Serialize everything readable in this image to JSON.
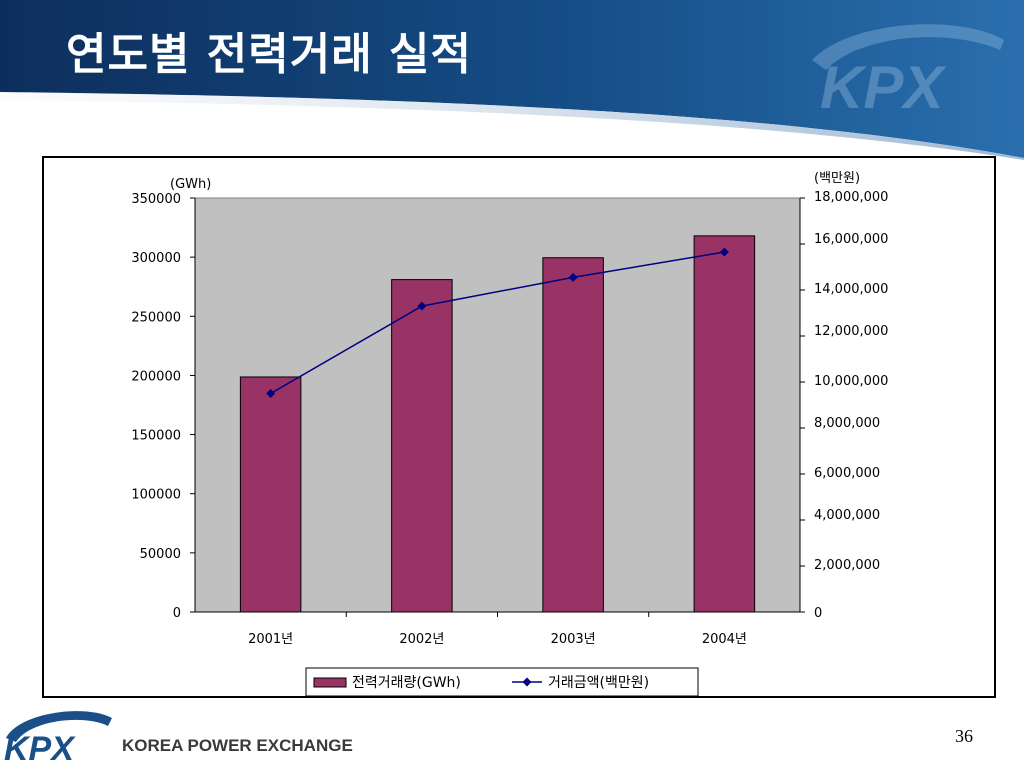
{
  "slide": {
    "title": "연도별 전력거래 실적",
    "page_number": "36",
    "footer_text": "KOREA POWER EXCHANGE",
    "brand_logo": "KPX",
    "colors": {
      "header_dark": "#0d2e5c",
      "header_light": "#cfdbe8",
      "bar_fill": "#993366",
      "line_color": "#000080",
      "plot_background": "#c0c0c0"
    }
  },
  "chart_data": {
    "type": "bar",
    "categories": [
      "2001년",
      "2002년",
      "2003년",
      "2004년"
    ],
    "series": [
      {
        "name": "전력거래량(GWh)",
        "type": "bar",
        "axis": "left",
        "values": [
          198700,
          281000,
          299500,
          318000
        ]
      },
      {
        "name": "거래금액(백만원)",
        "type": "line",
        "axis": "right",
        "values": [
          9500000,
          13300000,
          14550000,
          15650000
        ]
      }
    ],
    "y_left": {
      "label": "(GWh)",
      "range": [
        0,
        350000
      ],
      "ticks": [
        "0",
        "50000",
        "100000",
        "150000",
        "200000",
        "250000",
        "300000",
        "350000"
      ]
    },
    "y_right": {
      "label": "(백만원)",
      "range": [
        0,
        18000000
      ],
      "ticks": [
        "0",
        "2,000,000",
        "4,000,000",
        "6,000,000",
        "8,000,000",
        "10,000,000",
        "12,000,000",
        "14,000,000",
        "16,000,000",
        "18,000,000"
      ]
    },
    "grid": false,
    "legend_position": "bottom"
  }
}
